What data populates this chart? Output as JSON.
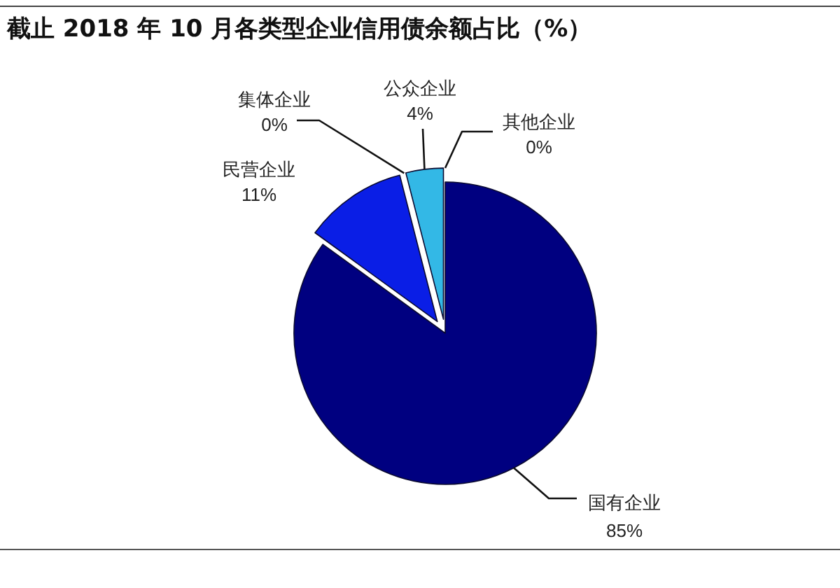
{
  "chart_data": {
    "type": "pie",
    "title": "截止 2018 年 10 月各类型企业信用债余额占比（%）",
    "categories": [
      "国有企业",
      "民营企业",
      "集体企业",
      "公众企业",
      "其他企业"
    ],
    "values": [
      85,
      11,
      0,
      4,
      0
    ],
    "colors": [
      "#000080",
      "#0a1ee6",
      "#24408a",
      "#33b8e6",
      "#2f8f8f"
    ],
    "value_labels": [
      "85%",
      "11%",
      "0%",
      "4%",
      "0%"
    ]
  }
}
